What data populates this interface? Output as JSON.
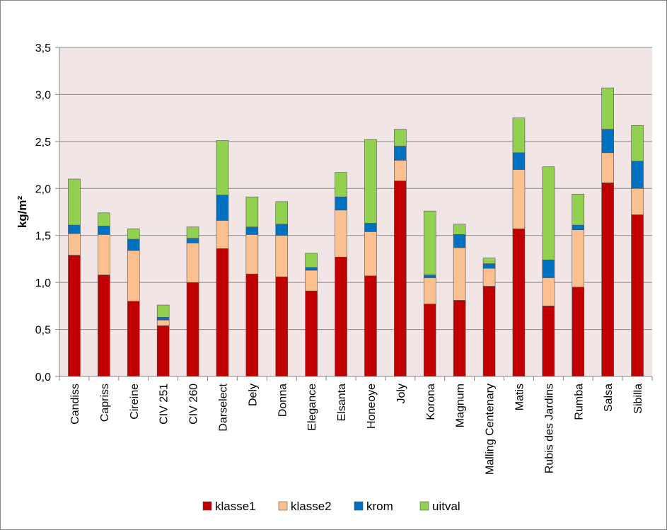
{
  "chart_data": {
    "type": "bar",
    "stacked": true,
    "title": "",
    "xlabel": "",
    "ylabel": "kg/m²",
    "ylim": [
      0,
      3.5
    ],
    "yticks": [
      "0,0",
      "0,5",
      "1,0",
      "1,5",
      "2,0",
      "2,5",
      "3,0",
      "3,5"
    ],
    "grid": true,
    "legend_position": "bottom",
    "plot_background": "#f2e5e5",
    "categories": [
      "Candiss",
      "Capriss",
      "Cireine",
      "CIV 251",
      "CIV 260",
      "Darselect",
      "Dely",
      "Donna",
      "Elegance",
      "Elsanta",
      "Honeoye",
      "Joly",
      "Korona",
      "Magnum",
      "Malling Centenary",
      "Matis",
      "Rubis des Jardins",
      "Rumba",
      "Salsa",
      "Sibilla"
    ],
    "series": [
      {
        "name": "klasse1",
        "color": "#c00000",
        "values": [
          1.29,
          1.08,
          0.8,
          0.54,
          1.0,
          1.36,
          1.09,
          1.06,
          0.91,
          1.27,
          1.07,
          2.08,
          0.77,
          0.81,
          0.96,
          1.57,
          0.75,
          0.95,
          2.06,
          1.72
        ]
      },
      {
        "name": "klasse2",
        "color": "#fac090",
        "values": [
          0.23,
          0.43,
          0.54,
          0.06,
          0.42,
          0.3,
          0.42,
          0.44,
          0.22,
          0.5,
          0.47,
          0.22,
          0.28,
          0.56,
          0.19,
          0.63,
          0.3,
          0.61,
          0.32,
          0.28
        ]
      },
      {
        "name": "krom",
        "color": "#0070c0",
        "values": [
          0.09,
          0.09,
          0.12,
          0.03,
          0.05,
          0.27,
          0.08,
          0.12,
          0.03,
          0.14,
          0.09,
          0.15,
          0.03,
          0.14,
          0.05,
          0.18,
          0.19,
          0.05,
          0.25,
          0.29
        ]
      },
      {
        "name": "uitval",
        "color": "#92d050",
        "values": [
          0.49,
          0.14,
          0.11,
          0.13,
          0.12,
          0.58,
          0.32,
          0.24,
          0.15,
          0.26,
          0.89,
          0.18,
          0.68,
          0.11,
          0.06,
          0.37,
          0.99,
          0.33,
          0.44,
          0.38
        ]
      }
    ]
  }
}
